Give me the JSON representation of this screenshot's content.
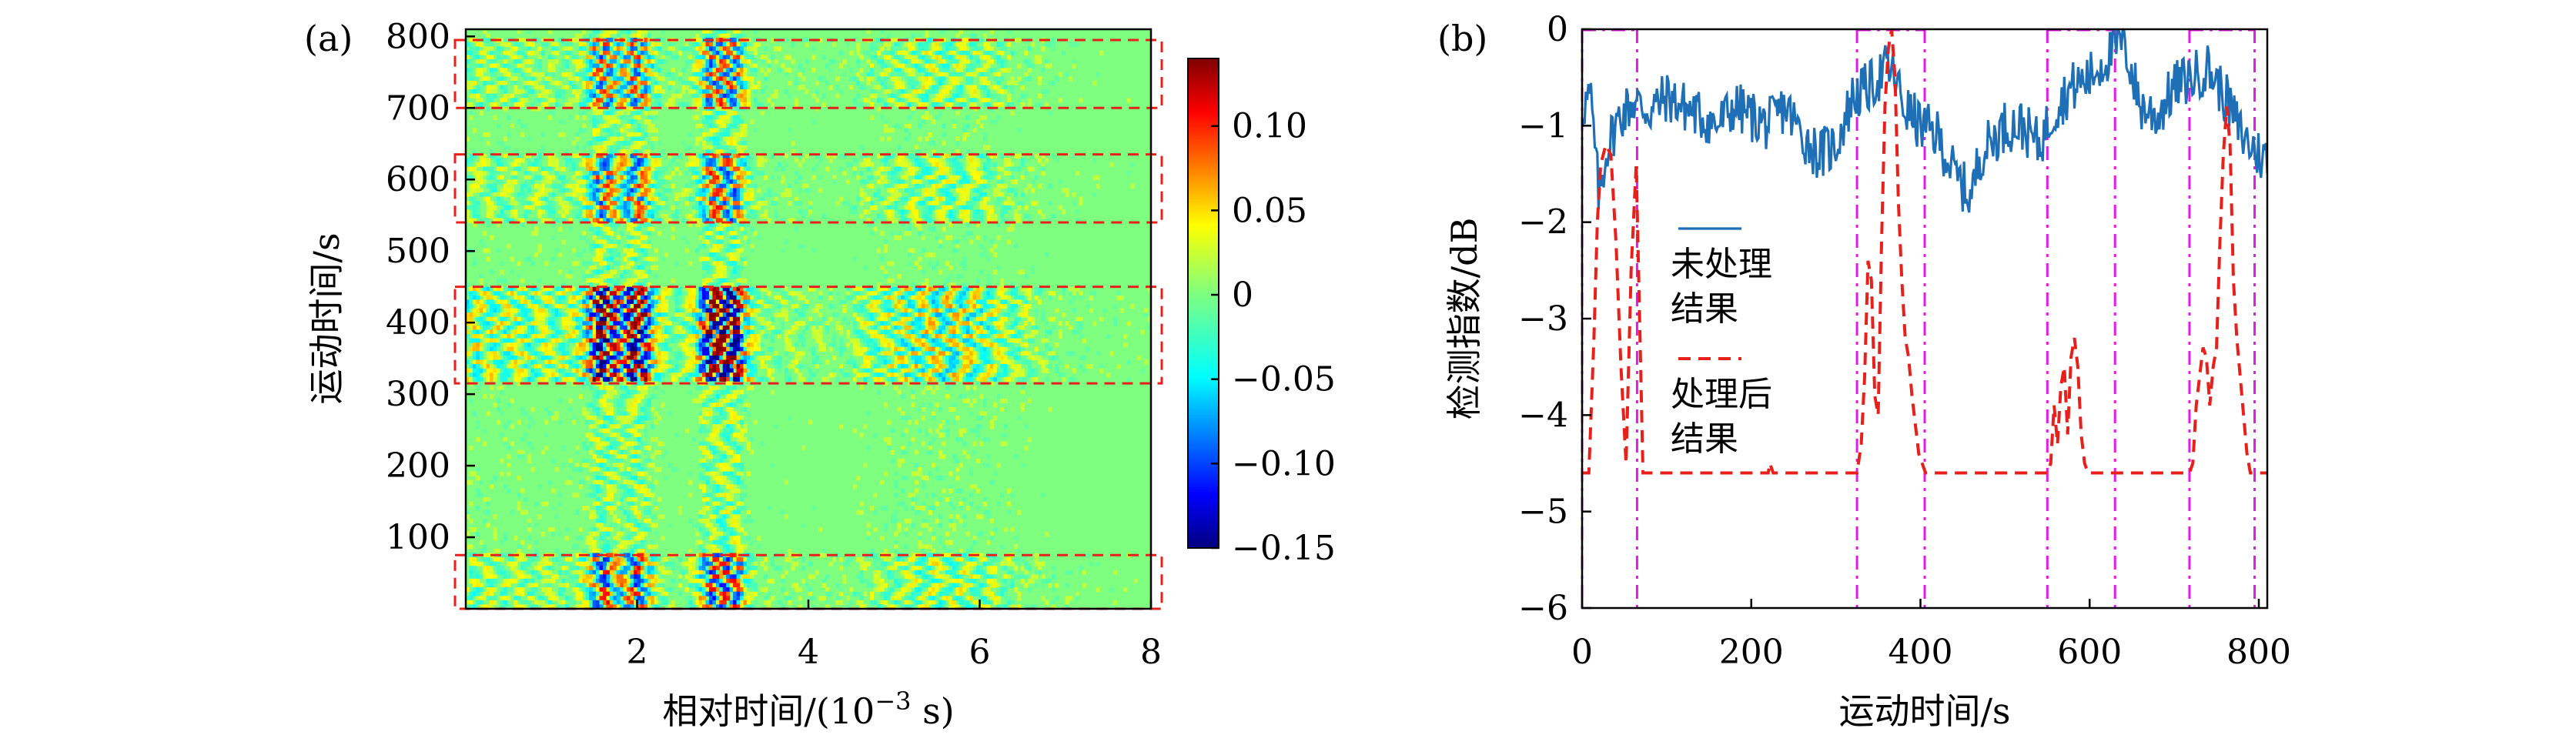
{
  "chart_data": [
    {
      "type": "heatmap",
      "panel_label": "(a)",
      "xlabel": "相对时间/(10^-3 s)",
      "xlabel_parts": {
        "prefix": "相对时间/(10",
        "exponent": "−3",
        "suffix": " s)"
      },
      "ylabel": "运动时间/s",
      "xlim": [
        0,
        8
      ],
      "ylim": [
        0,
        810
      ],
      "x_ticks": [
        2,
        4,
        6,
        8
      ],
      "x_tick_labels": [
        "2",
        "4",
        "6",
        "8"
      ],
      "y_ticks": [
        100,
        200,
        300,
        400,
        500,
        600,
        700,
        800
      ],
      "y_tick_labels": [
        "100",
        "200",
        "300",
        "400",
        "500",
        "600",
        "700",
        "800"
      ],
      "colorbar": {
        "vmin": -0.15,
        "vmax": 0.14,
        "colormap": "jet",
        "ticks": [
          0.1,
          0.05,
          0,
          -0.05,
          -0.1,
          -0.15
        ],
        "tick_labels": [
          "0.10",
          "0.05",
          "0",
          "−0.05",
          "−0.10",
          "−0.15"
        ]
      },
      "highlight_boxes": [
        {
          "y_range": [
            700,
            795
          ]
        },
        {
          "y_range": [
            540,
            635
          ]
        },
        {
          "y_range": [
            315,
            450
          ]
        },
        {
          "y_range": [
            0,
            75
          ]
        }
      ],
      "highlight_color": "#e8201c",
      "strong_bands": [
        {
          "y_range": [
            315,
            450
          ],
          "amplitude": 0.14
        },
        {
          "y_range": [
            540,
            635
          ],
          "amplitude": 0.08
        },
        {
          "y_range": [
            700,
            795
          ],
          "amplitude": 0.08
        },
        {
          "y_range": [
            0,
            75
          ],
          "amplitude": 0.09
        }
      ],
      "strong_x_columns": [
        1.6,
        2.0,
        2.9,
        3.1
      ]
    },
    {
      "type": "line",
      "panel_label": "(b)",
      "xlabel": "运动时间/s",
      "ylabel": "检测指数/dB",
      "xlim": [
        0,
        810
      ],
      "ylim": [
        -6,
        0
      ],
      "x_ticks": [
        0,
        200,
        400,
        600,
        800
      ],
      "x_tick_labels": [
        "0",
        "200",
        "400",
        "600",
        "800"
      ],
      "y_ticks": [
        0,
        -1,
        -2,
        -3,
        -4,
        -5,
        -6
      ],
      "y_tick_labels": [
        "0",
        "−1",
        "−2",
        "−3",
        "−4",
        "−5",
        "−6"
      ],
      "series": [
        {
          "name": "未处理结果",
          "legend_lines": [
            "未处理",
            "结果"
          ],
          "color": "#1f6fb7",
          "style": "solid",
          "x": [
            0,
            10,
            20,
            30,
            45,
            60,
            80,
            100,
            120,
            140,
            160,
            180,
            200,
            220,
            240,
            260,
            280,
            300,
            320,
            340,
            360,
            370,
            380,
            400,
            420,
            440,
            460,
            470,
            480,
            500,
            520,
            540,
            560,
            580,
            600,
            620,
            640,
            660,
            680,
            700,
            720,
            740,
            760,
            780,
            800,
            810
          ],
          "y": [
            -0.8,
            -0.7,
            -1.75,
            -1.2,
            -0.9,
            -0.75,
            -0.85,
            -0.7,
            -0.8,
            -0.9,
            -1.0,
            -0.8,
            -0.9,
            -1.0,
            -0.8,
            -1.1,
            -1.3,
            -1.2,
            -0.7,
            -0.6,
            -0.4,
            -0.5,
            -0.8,
            -1.0,
            -1.1,
            -1.5,
            -1.75,
            -1.3,
            -1.2,
            -1.0,
            -1.0,
            -1.2,
            -0.8,
            -0.6,
            -0.5,
            -0.3,
            -0.1,
            -0.8,
            -0.9,
            -0.6,
            -0.5,
            -0.4,
            -0.7,
            -1.1,
            -1.3,
            -1.35
          ]
        },
        {
          "name": "处理后结果",
          "legend_lines": [
            "处理后",
            "结果"
          ],
          "color": "#e8201c",
          "style": "dashed",
          "x": [
            0,
            8,
            14,
            18,
            22,
            28,
            34,
            40,
            46,
            52,
            58,
            64,
            68,
            72,
            220,
            222,
            226,
            325,
            330,
            334,
            338,
            342,
            346,
            350,
            354,
            358,
            362,
            366,
            370,
            374,
            378,
            382,
            386,
            390,
            394,
            398,
            402,
            406,
            410,
            550,
            554,
            558,
            562,
            566,
            570,
            574,
            578,
            582,
            586,
            590,
            594,
            598,
            602,
            630,
            718,
            722,
            726,
            730,
            734,
            738,
            742,
            746,
            750,
            754,
            758,
            762,
            766,
            770,
            774,
            778,
            782,
            786,
            790,
            810
          ],
          "y": [
            -4.6,
            -4.6,
            -3.2,
            -2.0,
            -1.4,
            -1.2,
            -1.3,
            -2.2,
            -3.5,
            -4.5,
            -2.5,
            -1.4,
            -3.0,
            -4.6,
            -4.6,
            -4.5,
            -4.6,
            -4.6,
            -4.3,
            -3.6,
            -2.4,
            -2.6,
            -3.8,
            -4.0,
            -2.2,
            -0.8,
            -0.2,
            0.0,
            -0.5,
            -1.8,
            -2.6,
            -3.2,
            -3.4,
            -3.8,
            -4.1,
            -4.4,
            -4.5,
            -4.6,
            -4.6,
            -4.6,
            -4.5,
            -3.9,
            -4.3,
            -3.7,
            -3.5,
            -4.2,
            -3.4,
            -3.2,
            -3.5,
            -4.2,
            -4.5,
            -4.6,
            -4.6,
            -4.6,
            -4.6,
            -4.5,
            -3.9,
            -3.6,
            -3.3,
            -3.4,
            -3.9,
            -3.5,
            -3.3,
            -2.2,
            -1.3,
            -0.8,
            -1.2,
            -2.6,
            -3.2,
            -3.6,
            -4.0,
            -4.4,
            -4.6,
            -4.6
          ]
        }
      ],
      "guide_lines": {
        "color": "#e619e6",
        "style": "dashdot",
        "x": [
          0,
          65,
          325,
          405,
          550,
          630,
          718,
          795
        ],
        "top_segments": [
          [
            0,
            65
          ],
          [
            325,
            405
          ],
          [
            550,
            630
          ],
          [
            718,
            795
          ]
        ]
      }
    }
  ]
}
